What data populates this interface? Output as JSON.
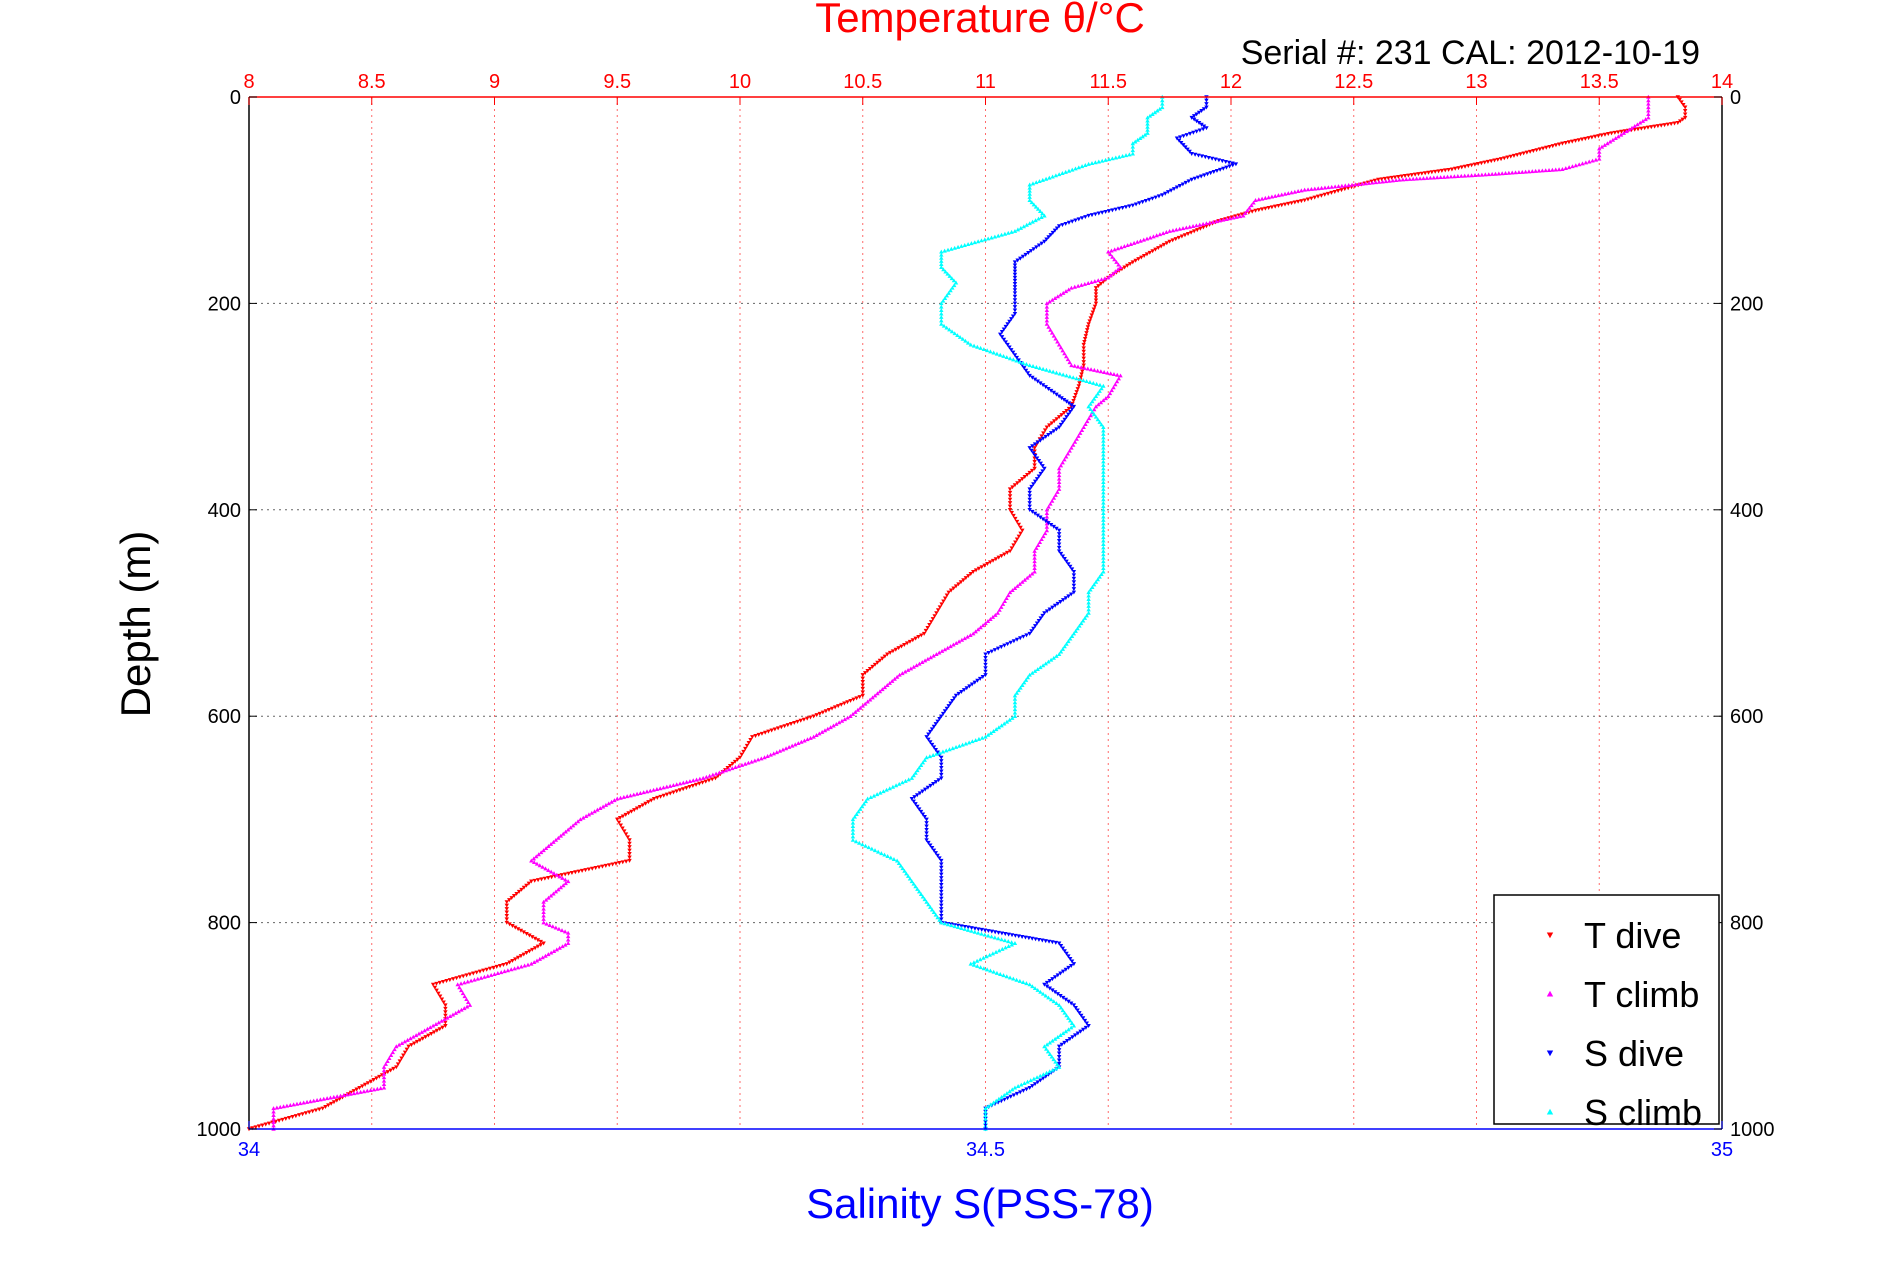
{
  "chart_data": {
    "type": "scatter",
    "title": "Temperature θ/°C",
    "subtitle": "Serial #: 231  CAL: 2012-10-19",
    "ylabel": "Depth (m)",
    "xlabel_bottom": "Salinity S(PSS-78)",
    "xlabel_top": "Temperature θ/°C",
    "y_axis": {
      "range": [
        0,
        1000
      ],
      "reversed": true,
      "ticks": [
        "0",
        "200",
        "400",
        "600",
        "800",
        "1000"
      ],
      "grid": true
    },
    "x_top": {
      "range": [
        8,
        14
      ],
      "ticks": [
        "8",
        "8.5",
        "9",
        "9.5",
        "10",
        "10.5",
        "11",
        "11.5",
        "12",
        "12.5",
        "13",
        "13.5",
        "14"
      ],
      "grid": true,
      "color": "#ff0000"
    },
    "x_bottom": {
      "range": [
        34,
        35
      ],
      "ticks": [
        "34",
        "34.5",
        "35"
      ],
      "color": "#0000ff"
    },
    "legend_position": "bottom-right",
    "series": [
      {
        "name": "T dive",
        "axis": "top",
        "color": "#ff0000",
        "marker": "triangle-down",
        "points": [
          [
            13.82,
            0
          ],
          [
            13.85,
            10
          ],
          [
            13.85,
            20
          ],
          [
            13.82,
            25
          ],
          [
            13.55,
            35
          ],
          [
            13.35,
            45
          ],
          [
            13.1,
            60
          ],
          [
            12.9,
            70
          ],
          [
            12.6,
            80
          ],
          [
            12.45,
            90
          ],
          [
            12.3,
            100
          ],
          [
            12.1,
            110
          ],
          [
            11.95,
            120
          ],
          [
            11.75,
            140
          ],
          [
            11.6,
            160
          ],
          [
            11.5,
            175
          ],
          [
            11.45,
            185
          ],
          [
            11.45,
            200
          ],
          [
            11.42,
            220
          ],
          [
            11.4,
            240
          ],
          [
            11.4,
            260
          ],
          [
            11.38,
            280
          ],
          [
            11.35,
            300
          ],
          [
            11.25,
            320
          ],
          [
            11.2,
            340
          ],
          [
            11.2,
            360
          ],
          [
            11.1,
            380
          ],
          [
            11.1,
            400
          ],
          [
            11.15,
            420
          ],
          [
            11.1,
            440
          ],
          [
            10.95,
            460
          ],
          [
            10.85,
            480
          ],
          [
            10.8,
            500
          ],
          [
            10.75,
            520
          ],
          [
            10.6,
            540
          ],
          [
            10.5,
            560
          ],
          [
            10.5,
            580
          ],
          [
            10.3,
            600
          ],
          [
            10.05,
            620
          ],
          [
            10.0,
            640
          ],
          [
            9.9,
            660
          ],
          [
            9.65,
            680
          ],
          [
            9.5,
            700
          ],
          [
            9.55,
            720
          ],
          [
            9.55,
            740
          ],
          [
            9.15,
            760
          ],
          [
            9.05,
            780
          ],
          [
            9.05,
            800
          ],
          [
            9.2,
            820
          ],
          [
            9.05,
            840
          ],
          [
            8.75,
            860
          ],
          [
            8.8,
            880
          ],
          [
            8.8,
            900
          ],
          [
            8.65,
            920
          ],
          [
            8.6,
            940
          ],
          [
            8.45,
            960
          ],
          [
            8.3,
            980
          ],
          [
            8.0,
            1000
          ]
        ]
      },
      {
        "name": "T climb",
        "axis": "top",
        "color": "#ff00ff",
        "marker": "triangle-up",
        "points": [
          [
            13.7,
            0
          ],
          [
            13.7,
            10
          ],
          [
            13.7,
            20
          ],
          [
            13.6,
            35
          ],
          [
            13.5,
            50
          ],
          [
            13.5,
            60
          ],
          [
            13.35,
            70
          ],
          [
            13.05,
            75
          ],
          [
            12.7,
            80
          ],
          [
            12.3,
            90
          ],
          [
            12.1,
            100
          ],
          [
            12.05,
            115
          ],
          [
            11.75,
            130
          ],
          [
            11.5,
            150
          ],
          [
            11.55,
            165
          ],
          [
            11.5,
            175
          ],
          [
            11.35,
            185
          ],
          [
            11.25,
            200
          ],
          [
            11.25,
            220
          ],
          [
            11.3,
            240
          ],
          [
            11.35,
            260
          ],
          [
            11.55,
            270
          ],
          [
            11.5,
            290
          ],
          [
            11.45,
            300
          ],
          [
            11.4,
            320
          ],
          [
            11.35,
            340
          ],
          [
            11.3,
            360
          ],
          [
            11.3,
            380
          ],
          [
            11.25,
            400
          ],
          [
            11.25,
            420
          ],
          [
            11.2,
            440
          ],
          [
            11.2,
            460
          ],
          [
            11.1,
            480
          ],
          [
            11.05,
            500
          ],
          [
            10.95,
            520
          ],
          [
            10.8,
            540
          ],
          [
            10.65,
            560
          ],
          [
            10.55,
            580
          ],
          [
            10.45,
            600
          ],
          [
            10.3,
            620
          ],
          [
            10.1,
            640
          ],
          [
            9.85,
            660
          ],
          [
            9.5,
            680
          ],
          [
            9.35,
            700
          ],
          [
            9.25,
            720
          ],
          [
            9.15,
            740
          ],
          [
            9.3,
            760
          ],
          [
            9.2,
            780
          ],
          [
            9.2,
            800
          ],
          [
            9.3,
            810
          ],
          [
            9.3,
            820
          ],
          [
            9.15,
            840
          ],
          [
            8.85,
            860
          ],
          [
            8.9,
            880
          ],
          [
            8.75,
            900
          ],
          [
            8.6,
            920
          ],
          [
            8.55,
            940
          ],
          [
            8.55,
            960
          ],
          [
            8.1,
            980
          ],
          [
            8.1,
            1000
          ]
        ]
      },
      {
        "name": "S dive",
        "axis": "bottom",
        "color": "#0000ff",
        "marker": "triangle-down",
        "points": [
          [
            34.65,
            0
          ],
          [
            34.65,
            10
          ],
          [
            34.64,
            20
          ],
          [
            34.65,
            30
          ],
          [
            34.63,
            40
          ],
          [
            34.64,
            55
          ],
          [
            34.67,
            65
          ],
          [
            34.64,
            80
          ],
          [
            34.62,
            95
          ],
          [
            34.6,
            105
          ],
          [
            34.57,
            115
          ],
          [
            34.55,
            125
          ],
          [
            34.54,
            140
          ],
          [
            34.52,
            160
          ],
          [
            34.52,
            175
          ],
          [
            34.52,
            190
          ],
          [
            34.52,
            210
          ],
          [
            34.51,
            230
          ],
          [
            34.52,
            250
          ],
          [
            34.53,
            270
          ],
          [
            34.55,
            290
          ],
          [
            34.56,
            300
          ],
          [
            34.55,
            320
          ],
          [
            34.53,
            340
          ],
          [
            34.54,
            360
          ],
          [
            34.53,
            380
          ],
          [
            34.53,
            400
          ],
          [
            34.55,
            420
          ],
          [
            34.55,
            440
          ],
          [
            34.56,
            460
          ],
          [
            34.56,
            480
          ],
          [
            34.54,
            500
          ],
          [
            34.53,
            520
          ],
          [
            34.5,
            540
          ],
          [
            34.5,
            560
          ],
          [
            34.48,
            580
          ],
          [
            34.47,
            600
          ],
          [
            34.46,
            620
          ],
          [
            34.47,
            640
          ],
          [
            34.47,
            660
          ],
          [
            34.45,
            680
          ],
          [
            34.46,
            700
          ],
          [
            34.46,
            720
          ],
          [
            34.47,
            740
          ],
          [
            34.47,
            760
          ],
          [
            34.47,
            780
          ],
          [
            34.47,
            800
          ],
          [
            34.55,
            820
          ],
          [
            34.56,
            840
          ],
          [
            34.54,
            860
          ],
          [
            34.56,
            880
          ],
          [
            34.57,
            900
          ],
          [
            34.55,
            920
          ],
          [
            34.55,
            940
          ],
          [
            34.53,
            960
          ],
          [
            34.5,
            980
          ],
          [
            34.5,
            1000
          ]
        ]
      },
      {
        "name": "S climb",
        "axis": "bottom",
        "color": "#00ffff",
        "marker": "triangle-up",
        "points": [
          [
            34.62,
            0
          ],
          [
            34.62,
            10
          ],
          [
            34.61,
            20
          ],
          [
            34.61,
            35
          ],
          [
            34.6,
            45
          ],
          [
            34.6,
            55
          ],
          [
            34.57,
            65
          ],
          [
            34.55,
            75
          ],
          [
            34.53,
            85
          ],
          [
            34.53,
            100
          ],
          [
            34.54,
            115
          ],
          [
            34.52,
            130
          ],
          [
            34.47,
            150
          ],
          [
            34.47,
            165
          ],
          [
            34.48,
            180
          ],
          [
            34.47,
            200
          ],
          [
            34.47,
            220
          ],
          [
            34.49,
            240
          ],
          [
            34.53,
            260
          ],
          [
            34.58,
            280
          ],
          [
            34.57,
            300
          ],
          [
            34.58,
            320
          ],
          [
            34.58,
            340
          ],
          [
            34.58,
            360
          ],
          [
            34.58,
            380
          ],
          [
            34.58,
            400
          ],
          [
            34.58,
            420
          ],
          [
            34.58,
            440
          ],
          [
            34.58,
            460
          ],
          [
            34.57,
            480
          ],
          [
            34.57,
            500
          ],
          [
            34.56,
            520
          ],
          [
            34.55,
            540
          ],
          [
            34.53,
            560
          ],
          [
            34.52,
            580
          ],
          [
            34.52,
            600
          ],
          [
            34.5,
            620
          ],
          [
            34.46,
            640
          ],
          [
            34.45,
            660
          ],
          [
            34.42,
            680
          ],
          [
            34.41,
            700
          ],
          [
            34.41,
            720
          ],
          [
            34.44,
            740
          ],
          [
            34.45,
            760
          ],
          [
            34.46,
            780
          ],
          [
            34.47,
            800
          ],
          [
            34.52,
            820
          ],
          [
            34.49,
            840
          ],
          [
            34.53,
            860
          ],
          [
            34.55,
            880
          ],
          [
            34.56,
            900
          ],
          [
            34.54,
            920
          ],
          [
            34.55,
            940
          ],
          [
            34.52,
            960
          ],
          [
            34.5,
            980
          ],
          [
            34.5,
            1000
          ]
        ]
      }
    ]
  }
}
